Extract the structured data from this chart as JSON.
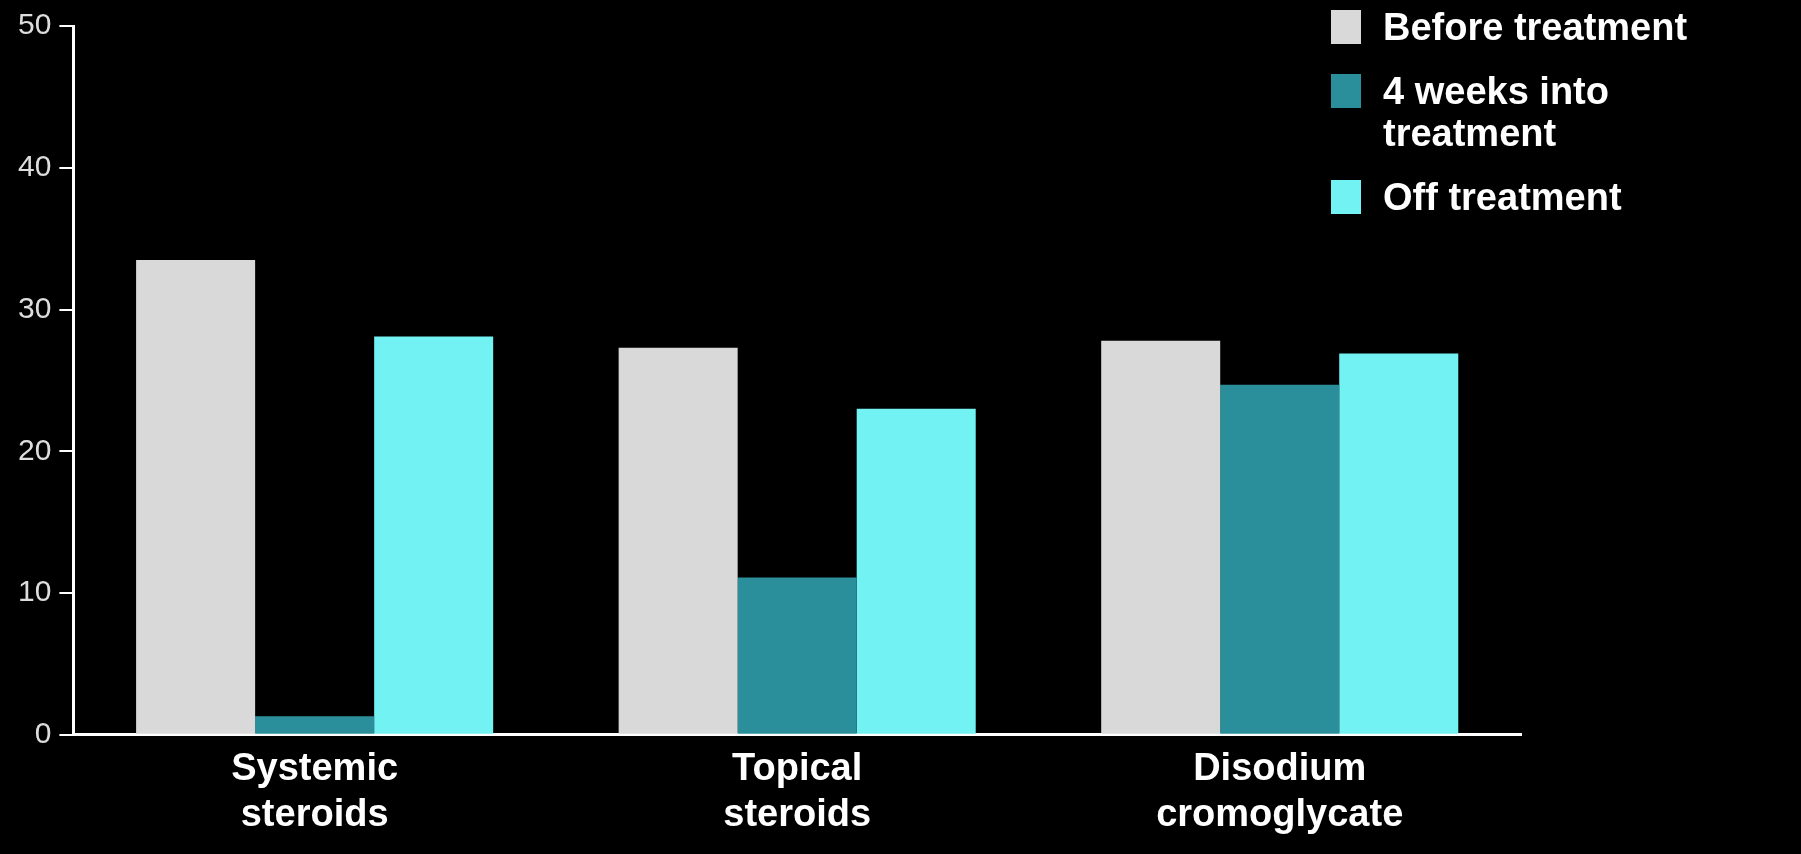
{
  "chart_data": {
    "type": "bar",
    "categories": [
      "Systemic steroids",
      "Topical steroids",
      "Disodium cromoglycate"
    ],
    "series": [
      {
        "name": "Before treatment",
        "color": "#d9d9d9",
        "values": [
          33.5,
          27.3,
          27.8
        ]
      },
      {
        "name": "4 weeks into treatment",
        "color": "#2b8f9b",
        "values": [
          1.3,
          11.1,
          24.7
        ]
      },
      {
        "name": "Off treatment",
        "color": "#72f2f2",
        "values": [
          28.1,
          23.0,
          26.9
        ]
      }
    ],
    "ylim": [
      0,
      50
    ],
    "yticks": [
      0,
      10,
      20,
      30,
      40,
      50
    ],
    "grid": false,
    "legend": "top right"
  }
}
